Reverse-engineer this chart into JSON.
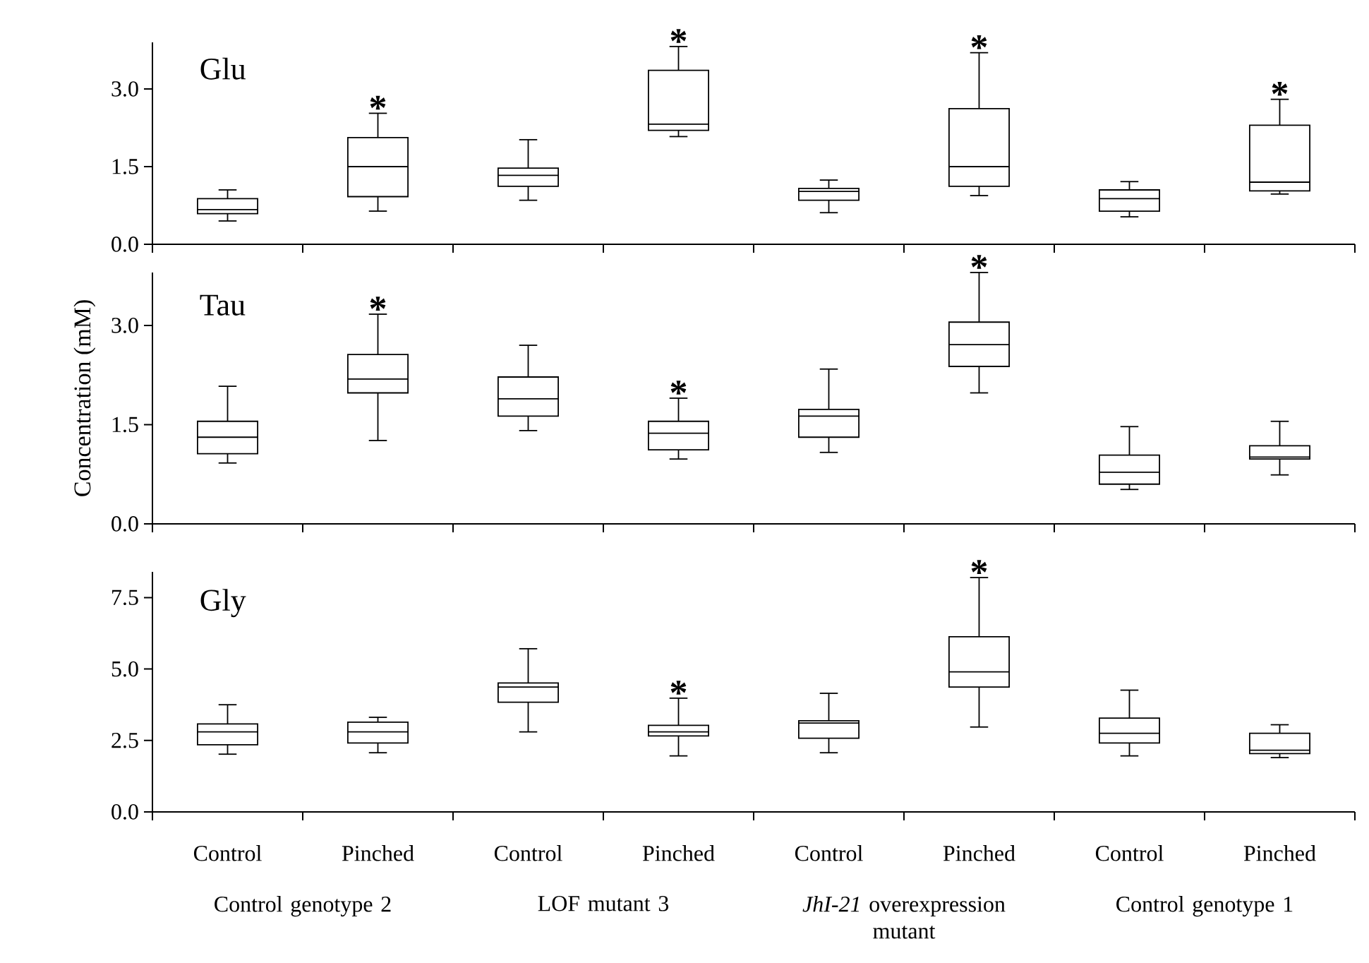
{
  "chart_data": [
    {
      "type": "box",
      "title": "Glu",
      "color": "#000000",
      "tick_labels": "y",
      "categories": [
        null,
        null,
        null,
        null,
        null,
        null,
        null,
        null
      ],
      "ylim": [
        0,
        3.9
      ],
      "yticks": [
        {
          "value": 0,
          "label": "0.0"
        },
        {
          "value": 1.5,
          "label": "1.5"
        },
        {
          "value": 3,
          "label": "3.0"
        }
      ],
      "boxes": [
        {
          "low": 0.45,
          "q1": 0.59,
          "median": 0.67,
          "q3": 0.88,
          "high": 1.05
        },
        {
          "low": 0.64,
          "q1": 0.92,
          "median": 1.5,
          "q3": 2.06,
          "high": 2.53
        },
        {
          "low": 0.85,
          "q1": 1.12,
          "median": 1.33,
          "q3": 1.47,
          "high": 2.02
        },
        {
          "low": 2.08,
          "q1": 2.2,
          "median": 2.32,
          "q3": 3.36,
          "high": 3.82
        },
        {
          "low": 0.61,
          "q1": 0.85,
          "median": 1.02,
          "q3": 1.08,
          "high": 1.24
        },
        {
          "low": 0.94,
          "q1": 1.12,
          "median": 1.5,
          "q3": 2.62,
          "high": 3.7
        },
        {
          "low": 0.53,
          "q1": 0.64,
          "median": 0.88,
          "q3": 1.05,
          "high": 1.21
        },
        {
          "low": 0.97,
          "q1": 1.03,
          "median": 1.2,
          "q3": 2.3,
          "high": 2.8
        }
      ],
      "annotations": [
        "*",
        "*",
        "*",
        "*"
      ]
    },
    {
      "type": "box",
      "title": "Tau",
      "ylabel": "Concentration (mM)",
      "color": "#000000",
      "tick_labels": "y",
      "categories": [
        null,
        null,
        null,
        null,
        null,
        null,
        null,
        null
      ],
      "ylim": [
        0,
        3.8
      ],
      "yticks": [
        {
          "value": 0,
          "label": "0.0"
        },
        {
          "value": 1.5,
          "label": "1.5"
        },
        {
          "value": 3,
          "label": "3.0"
        }
      ],
      "boxes": [
        {
          "low": 0.92,
          "q1": 1.06,
          "median": 1.31,
          "q3": 1.55,
          "high": 2.08
        },
        {
          "low": 1.26,
          "q1": 1.98,
          "median": 2.19,
          "q3": 2.56,
          "high": 3.17
        },
        {
          "low": 1.41,
          "q1": 1.63,
          "median": 1.89,
          "q3": 2.22,
          "high": 2.7
        },
        {
          "low": 0.98,
          "q1": 1.12,
          "median": 1.37,
          "q3": 1.55,
          "high": 1.9
        },
        {
          "low": 1.08,
          "q1": 1.31,
          "median": 1.63,
          "q3": 1.73,
          "high": 2.34
        },
        {
          "low": 1.98,
          "q1": 2.38,
          "median": 2.71,
          "q3": 3.05,
          "high": 3.8
        },
        {
          "low": 0.52,
          "q1": 0.6,
          "median": 0.78,
          "q3": 1.04,
          "high": 1.47
        },
        {
          "low": 0.74,
          "q1": 0.98,
          "median": 1.01,
          "q3": 1.18,
          "high": 1.55
        }
      ],
      "annotations": [
        "*",
        "*",
        "*"
      ]
    },
    {
      "type": "box",
      "title": "Gly",
      "color": "#000000",
      "categories": [
        "Control",
        "Pinched",
        "Control",
        "Pinched",
        "Control",
        "Pinched",
        "Control",
        "Pinched"
      ],
      "ylim": [
        0,
        8.4
      ],
      "yticks": [
        {
          "value": 0,
          "label": "0.0"
        },
        {
          "value": 2.5,
          "label": "2.5"
        },
        {
          "value": 5,
          "label": "5.0"
        },
        {
          "value": 7.5,
          "label": "7.5"
        }
      ],
      "boxes": [
        {
          "low": 2.02,
          "q1": 2.35,
          "median": 2.8,
          "q3": 3.08,
          "high": 3.75
        },
        {
          "low": 2.07,
          "q1": 2.41,
          "median": 2.8,
          "q3": 3.14,
          "high": 3.31
        },
        {
          "low": 2.8,
          "q1": 3.84,
          "median": 4.37,
          "q3": 4.51,
          "high": 5.71
        },
        {
          "low": 1.96,
          "q1": 2.66,
          "median": 2.8,
          "q3": 3.03,
          "high": 3.98
        },
        {
          "low": 2.07,
          "q1": 2.58,
          "median": 3.11,
          "q3": 3.19,
          "high": 4.15
        },
        {
          "low": 2.97,
          "q1": 4.37,
          "median": 4.9,
          "q3": 6.13,
          "high": 8.2
        },
        {
          "low": 1.96,
          "q1": 2.41,
          "median": 2.75,
          "q3": 3.28,
          "high": 4.26
        },
        {
          "low": 1.9,
          "q1": 2.04,
          "median": 2.16,
          "q3": 2.75,
          "high": 3.05
        }
      ],
      "annotations": [
        "Control genotype 2",
        "LOF mutant 3",
        "*JhI-21* overexpression mutant",
        "Control genotype 1",
        "*",
        "*"
      ]
    }
  ]
}
